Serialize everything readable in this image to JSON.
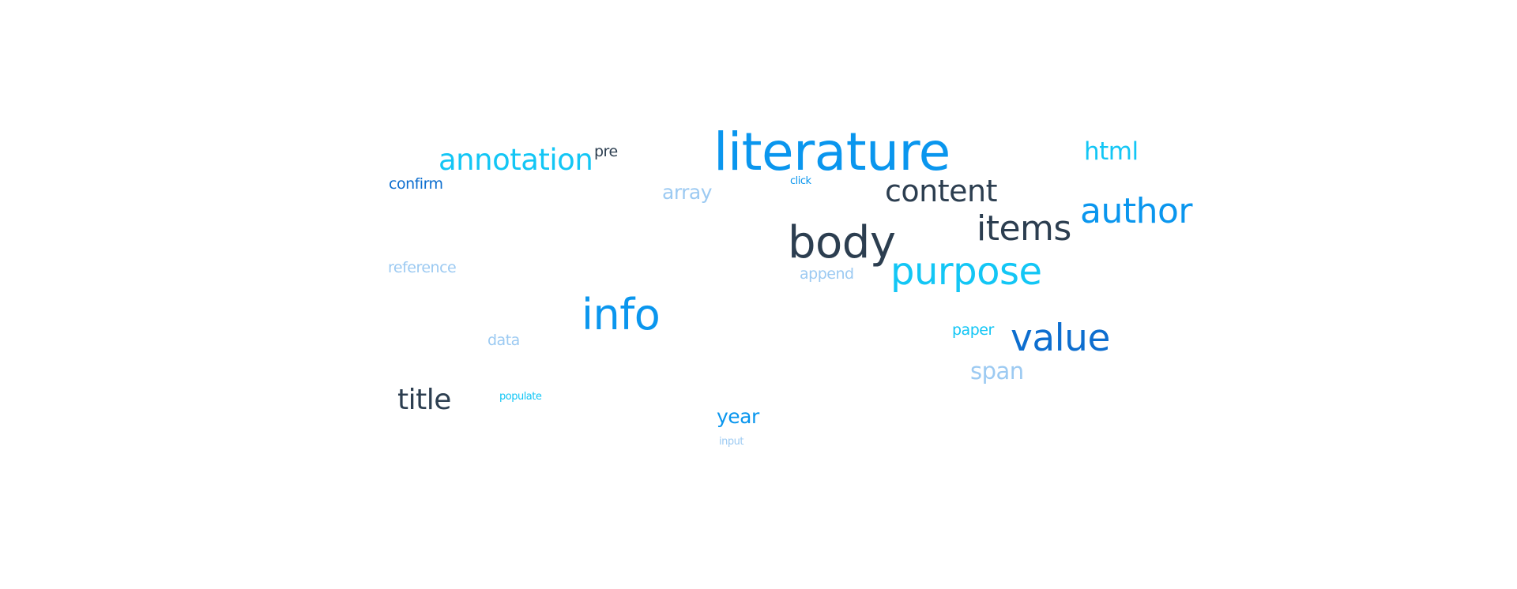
{
  "word_cloud": {
    "words": [
      {
        "key": "literature",
        "text": "literature",
        "color": "#0a96ee"
      },
      {
        "key": "annotation",
        "text": "annotation",
        "color": "#13c6f5"
      },
      {
        "key": "pre",
        "text": "pre",
        "color": "#2c3e50"
      },
      {
        "key": "html",
        "text": "html",
        "color": "#13c6f5"
      },
      {
        "key": "confirm",
        "text": "confirm",
        "color": "#0d6ecf"
      },
      {
        "key": "click",
        "text": "click",
        "color": "#0a96ee"
      },
      {
        "key": "array",
        "text": "array",
        "color": "#9ccaf2"
      },
      {
        "key": "content",
        "text": "content",
        "color": "#2c3e50"
      },
      {
        "key": "author",
        "text": "author",
        "color": "#0a96ee"
      },
      {
        "key": "items",
        "text": "items",
        "color": "#2c3e50"
      },
      {
        "key": "body",
        "text": "body",
        "color": "#2c3e50"
      },
      {
        "key": "purpose",
        "text": "purpose",
        "color": "#13c6f5"
      },
      {
        "key": "reference",
        "text": "reference",
        "color": "#9ccaf2"
      },
      {
        "key": "append",
        "text": "append",
        "color": "#9ccaf2"
      },
      {
        "key": "info",
        "text": "info",
        "color": "#0a96ee"
      },
      {
        "key": "paper",
        "text": "paper",
        "color": "#13c6f5"
      },
      {
        "key": "value",
        "text": "value",
        "color": "#0d6ecf"
      },
      {
        "key": "data",
        "text": "data",
        "color": "#9ccaf2"
      },
      {
        "key": "span",
        "text": "span",
        "color": "#9ccaf2"
      },
      {
        "key": "title",
        "text": "title",
        "color": "#2c3e50"
      },
      {
        "key": "populate",
        "text": "populate",
        "color": "#13c6f5"
      },
      {
        "key": "year",
        "text": "year",
        "color": "#0a96ee"
      },
      {
        "key": "input",
        "text": "input",
        "color": "#9ccaf2"
      }
    ]
  }
}
